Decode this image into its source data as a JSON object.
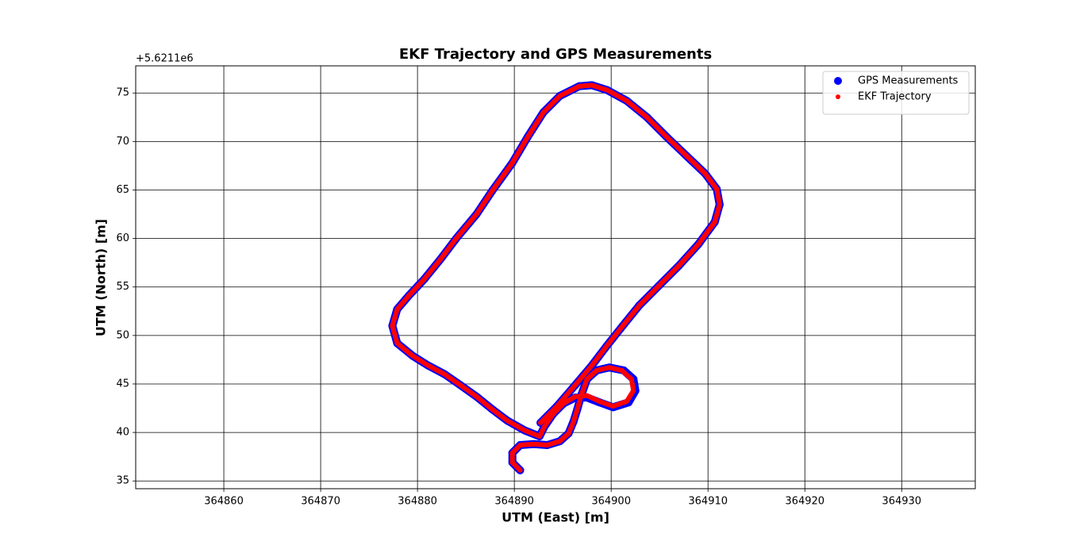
{
  "chart_data": {
    "type": "scatter",
    "title": "EKF Trajectory and GPS Measurements",
    "x_label": "UTM (East) [m]",
    "y_label": "UTM (North) [m]",
    "y_offset_text": "+5.6211e6",
    "xlim": [
      364850.9,
      364937.6
    ],
    "ylim": [
      34.2,
      77.8
    ],
    "xticks": [
      364860,
      364870,
      364880,
      364890,
      364900,
      364910,
      364920,
      364930
    ],
    "yticks": [
      35,
      40,
      45,
      50,
      55,
      60,
      65,
      70,
      75
    ],
    "grid": true,
    "legend": "upper right",
    "series": [
      {
        "name": "GPS Measurements",
        "color": "#0000ff",
        "marker_size": 5,
        "x": [
          364890.6,
          364889.8,
          364889.8,
          364890.6,
          364892.0,
          364893.4,
          364894.7,
          364895.6,
          364896.1,
          364896.5,
          364896.9,
          364897.5,
          364898.5,
          364899.8,
          364901.3,
          364902.3,
          364902.5,
          364901.8,
          364900.2,
          364898.8,
          364897.5,
          364896.3,
          364895.1,
          364894.0,
          364893.1,
          364892.6,
          364891.1,
          364889.3,
          364887.7,
          364886.1,
          364884.4,
          364882.8,
          364881.1,
          364879.5,
          364877.9,
          364877.4,
          364877.9,
          364879.1,
          364880.7,
          364882.4,
          364884.0,
          364886.1,
          364887.7,
          364889.8,
          364891.4,
          364893.0,
          364894.7,
          364896.7,
          364898.0,
          364899.6,
          364901.6,
          364903.7,
          364905.7,
          364907.8,
          364909.7,
          364910.9,
          364911.2,
          364910.7,
          364909.0,
          364907.0,
          364904.9,
          364902.9,
          364901.2,
          364899.6,
          364898.0,
          364896.3,
          364894.4,
          364892.7
        ],
        "y": [
          36.1,
          36.9,
          37.9,
          38.7,
          38.8,
          38.7,
          39.1,
          39.9,
          41.1,
          42.4,
          43.8,
          45.5,
          46.4,
          46.7,
          46.4,
          45.5,
          44.3,
          43.1,
          42.6,
          43.1,
          43.6,
          43.6,
          43.0,
          41.9,
          40.6,
          39.6,
          40.2,
          41.2,
          42.4,
          43.7,
          44.9,
          46.0,
          46.9,
          47.9,
          49.2,
          51.0,
          52.7,
          54.1,
          55.8,
          57.9,
          60.0,
          62.5,
          64.9,
          67.8,
          70.5,
          73.0,
          74.7,
          75.7,
          75.8,
          75.3,
          74.2,
          72.5,
          70.5,
          68.5,
          66.7,
          65.1,
          63.5,
          61.7,
          59.4,
          57.2,
          55.1,
          53.1,
          51.0,
          49.0,
          46.9,
          44.9,
          42.7,
          41.0
        ]
      },
      {
        "name": "EKF Trajectory",
        "color": "#ff0000",
        "marker_size": 3,
        "x": [
          364890.6,
          364889.8,
          364889.8,
          364890.6,
          364892.0,
          364893.4,
          364894.7,
          364895.6,
          364896.1,
          364896.5,
          364896.9,
          364897.5,
          364898.5,
          364899.8,
          364901.1,
          364902.1,
          364902.3,
          364901.6,
          364900.2,
          364898.8,
          364897.5,
          364896.3,
          364895.1,
          364894.0,
          364893.1,
          364892.6,
          364891.1,
          364889.3,
          364887.7,
          364886.1,
          364884.4,
          364882.8,
          364881.1,
          364879.5,
          364877.9,
          364877.4,
          364877.9,
          364879.1,
          364880.7,
          364882.4,
          364884.0,
          364886.1,
          364887.7,
          364889.8,
          364891.4,
          364893.0,
          364894.7,
          364896.7,
          364898.0,
          364899.6,
          364901.6,
          364903.7,
          364905.7,
          364907.8,
          364909.7,
          364910.9,
          364911.2,
          364910.7,
          364909.0,
          364907.0,
          364904.9,
          364902.9,
          364901.2,
          364899.6,
          364898.0,
          364896.3,
          364894.4,
          364892.7
        ],
        "y": [
          36.1,
          36.9,
          37.9,
          38.7,
          38.8,
          38.7,
          39.1,
          39.9,
          41.1,
          42.4,
          43.8,
          45.5,
          46.4,
          46.7,
          46.4,
          45.5,
          44.3,
          43.2,
          42.7,
          43.2,
          43.8,
          43.7,
          43.0,
          41.9,
          40.6,
          39.6,
          40.2,
          41.2,
          42.4,
          43.7,
          44.9,
          46.0,
          46.9,
          47.9,
          49.2,
          51.0,
          52.7,
          54.1,
          55.8,
          57.9,
          60.0,
          62.5,
          64.9,
          67.8,
          70.5,
          73.0,
          74.7,
          75.7,
          75.8,
          75.3,
          74.2,
          72.5,
          70.5,
          68.5,
          66.7,
          65.1,
          63.5,
          61.7,
          59.4,
          57.2,
          55.1,
          53.1,
          51.0,
          49.0,
          46.9,
          44.9,
          42.7,
          41.0
        ]
      }
    ]
  }
}
